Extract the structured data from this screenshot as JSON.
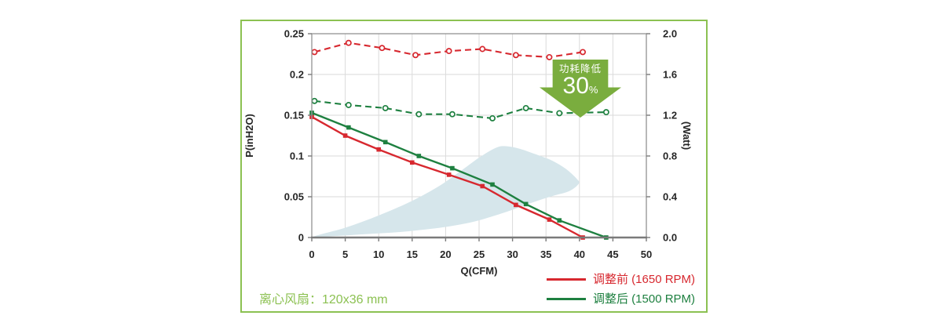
{
  "card": {
    "border_color": "#8cc152",
    "footer_note": "离心风扇：120x36 mm",
    "footer_color": "#8cc152"
  },
  "badge": {
    "line1": "功耗降低",
    "value": "30",
    "unit": "%",
    "color": "#7aad3e"
  },
  "legend": [
    {
      "label": "调整前 (1650 RPM)",
      "color": "#d7282f"
    },
    {
      "label": "调整后 (1500 RPM)",
      "color": "#1e8040"
    }
  ],
  "chart_data": {
    "type": "line",
    "title": "",
    "xlabel": "Q(CFM)",
    "ylabel_left": "P(inH2O)",
    "ylabel_right": "(Watt)",
    "grid": true,
    "x_range": [
      0,
      50
    ],
    "x_ticks": [
      "0",
      "5",
      "10",
      "15",
      "20",
      "25",
      "30",
      "35",
      "40",
      "45",
      "50"
    ],
    "y_left_range": [
      0,
      0.25
    ],
    "y_left_ticks": [
      "0",
      "0.05",
      "0.1",
      "0.15",
      "0.2",
      "0.25"
    ],
    "y_right_range": [
      0,
      2.0
    ],
    "y_right_ticks": [
      "0.0",
      "0.4",
      "0.8",
      "1.2",
      "1.6",
      "2.0"
    ],
    "series": [
      {
        "name": "调整前 (1650 RPM) P-Q曲线",
        "axis": "left",
        "style": "solid",
        "marker": "square-filled",
        "color": "#d7282f",
        "points": [
          [
            0,
            0.148
          ],
          [
            5,
            0.125
          ],
          [
            10,
            0.108
          ],
          [
            15,
            0.092
          ],
          [
            20.5,
            0.077
          ],
          [
            25.5,
            0.063
          ],
          [
            30.5,
            0.04
          ],
          [
            35.5,
            0.022
          ],
          [
            40.5,
            0
          ]
        ]
      },
      {
        "name": "调整后 (1500 RPM) P-Q曲线",
        "axis": "left",
        "style": "solid",
        "marker": "square-filled",
        "color": "#1e8040",
        "points": [
          [
            0,
            0.153
          ],
          [
            5.5,
            0.135
          ],
          [
            11,
            0.117
          ],
          [
            16,
            0.1
          ],
          [
            21,
            0.085
          ],
          [
            27,
            0.065
          ],
          [
            32,
            0.041
          ],
          [
            37,
            0.021
          ],
          [
            44,
            0
          ]
        ]
      },
      {
        "name": "调整前 (1650 RPM) 功耗",
        "axis": "right",
        "style": "dashed",
        "marker": "circle-hollow",
        "color": "#d7282f",
        "points": [
          [
            0.4,
            1.82
          ],
          [
            5.5,
            1.91
          ],
          [
            10.5,
            1.86
          ],
          [
            15.5,
            1.79
          ],
          [
            20.5,
            1.83
          ],
          [
            25.5,
            1.85
          ],
          [
            30.5,
            1.79
          ],
          [
            35.5,
            1.77
          ],
          [
            40.5,
            1.82
          ]
        ]
      },
      {
        "name": "调整后 (1500 RPM) 功耗",
        "axis": "right",
        "style": "dashed",
        "marker": "circle-hollow",
        "color": "#1e8040",
        "points": [
          [
            0.4,
            1.34
          ],
          [
            5.5,
            1.3
          ],
          [
            11,
            1.27
          ],
          [
            16,
            1.21
          ],
          [
            21,
            1.21
          ],
          [
            27,
            1.17
          ],
          [
            32,
            1.27
          ],
          [
            37,
            1.22
          ],
          [
            44,
            1.23
          ]
        ]
      }
    ],
    "operating_region": {
      "color": "#d6e6eb",
      "points": [
        [
          0.3,
          0.001
        ],
        [
          5,
          0.012
        ],
        [
          10,
          0.027
        ],
        [
          15,
          0.045
        ],
        [
          19,
          0.063
        ],
        [
          22,
          0.08
        ],
        [
          25,
          0.098
        ],
        [
          27.5,
          0.11
        ],
        [
          29,
          0.112
        ],
        [
          31,
          0.109
        ],
        [
          33.5,
          0.102
        ],
        [
          36,
          0.094
        ],
        [
          38,
          0.084
        ],
        [
          39.6,
          0.072
        ],
        [
          39.9,
          0.066
        ],
        [
          38.5,
          0.057
        ],
        [
          36,
          0.051
        ],
        [
          33,
          0.043
        ],
        [
          30,
          0.034
        ],
        [
          27,
          0.026
        ],
        [
          24,
          0.019
        ],
        [
          20,
          0.013
        ],
        [
          16,
          0.009
        ],
        [
          12,
          0.006
        ],
        [
          8,
          0.004
        ],
        [
          4,
          0.002
        ]
      ]
    }
  }
}
